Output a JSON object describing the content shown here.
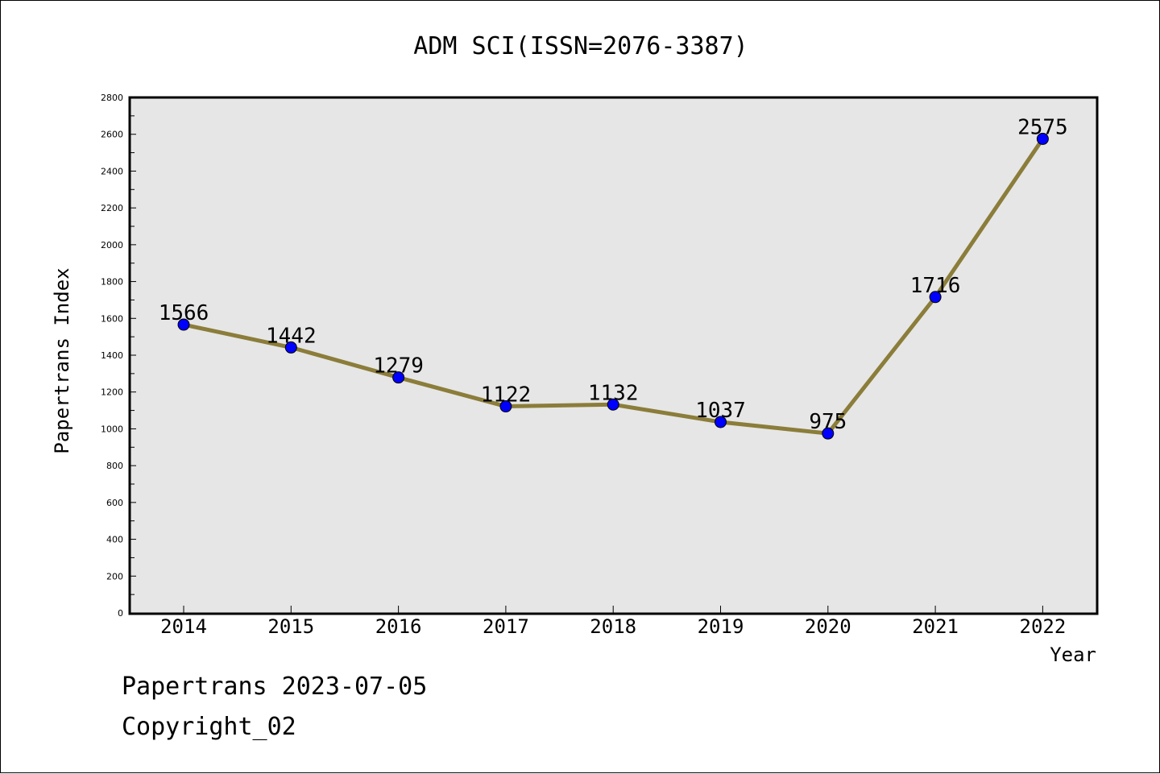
{
  "chart_data": {
    "type": "line",
    "title": "ADM SCI(ISSN=2076-3387)",
    "xlabel": "Year",
    "ylabel": "Papertrans Index",
    "categories": [
      "2014",
      "2015",
      "2016",
      "2017",
      "2018",
      "2019",
      "2020",
      "2021",
      "2022"
    ],
    "values": [
      1566,
      1442,
      1279,
      1122,
      1132,
      1037,
      975,
      1716,
      2575
    ],
    "data_labels": [
      "1566",
      "1442",
      "1279",
      "1122",
      "1132",
      "1037",
      "975",
      "1716",
      "2575"
    ],
    "ylim": [
      0,
      2800
    ],
    "yticks": [
      "0",
      "200",
      "400",
      "600",
      "800",
      "1000",
      "1200",
      "1400",
      "1600",
      "1800",
      "2000",
      "2200",
      "2400",
      "2600",
      "2800"
    ],
    "grid": false,
    "legend": "none",
    "colors": {
      "line": "#8b7d3a",
      "marker": "#0000ff",
      "plot_background": "#e6e6e6"
    }
  },
  "footer": {
    "line1": "Papertrans 2023-07-05",
    "line2": "Copyright_02"
  }
}
